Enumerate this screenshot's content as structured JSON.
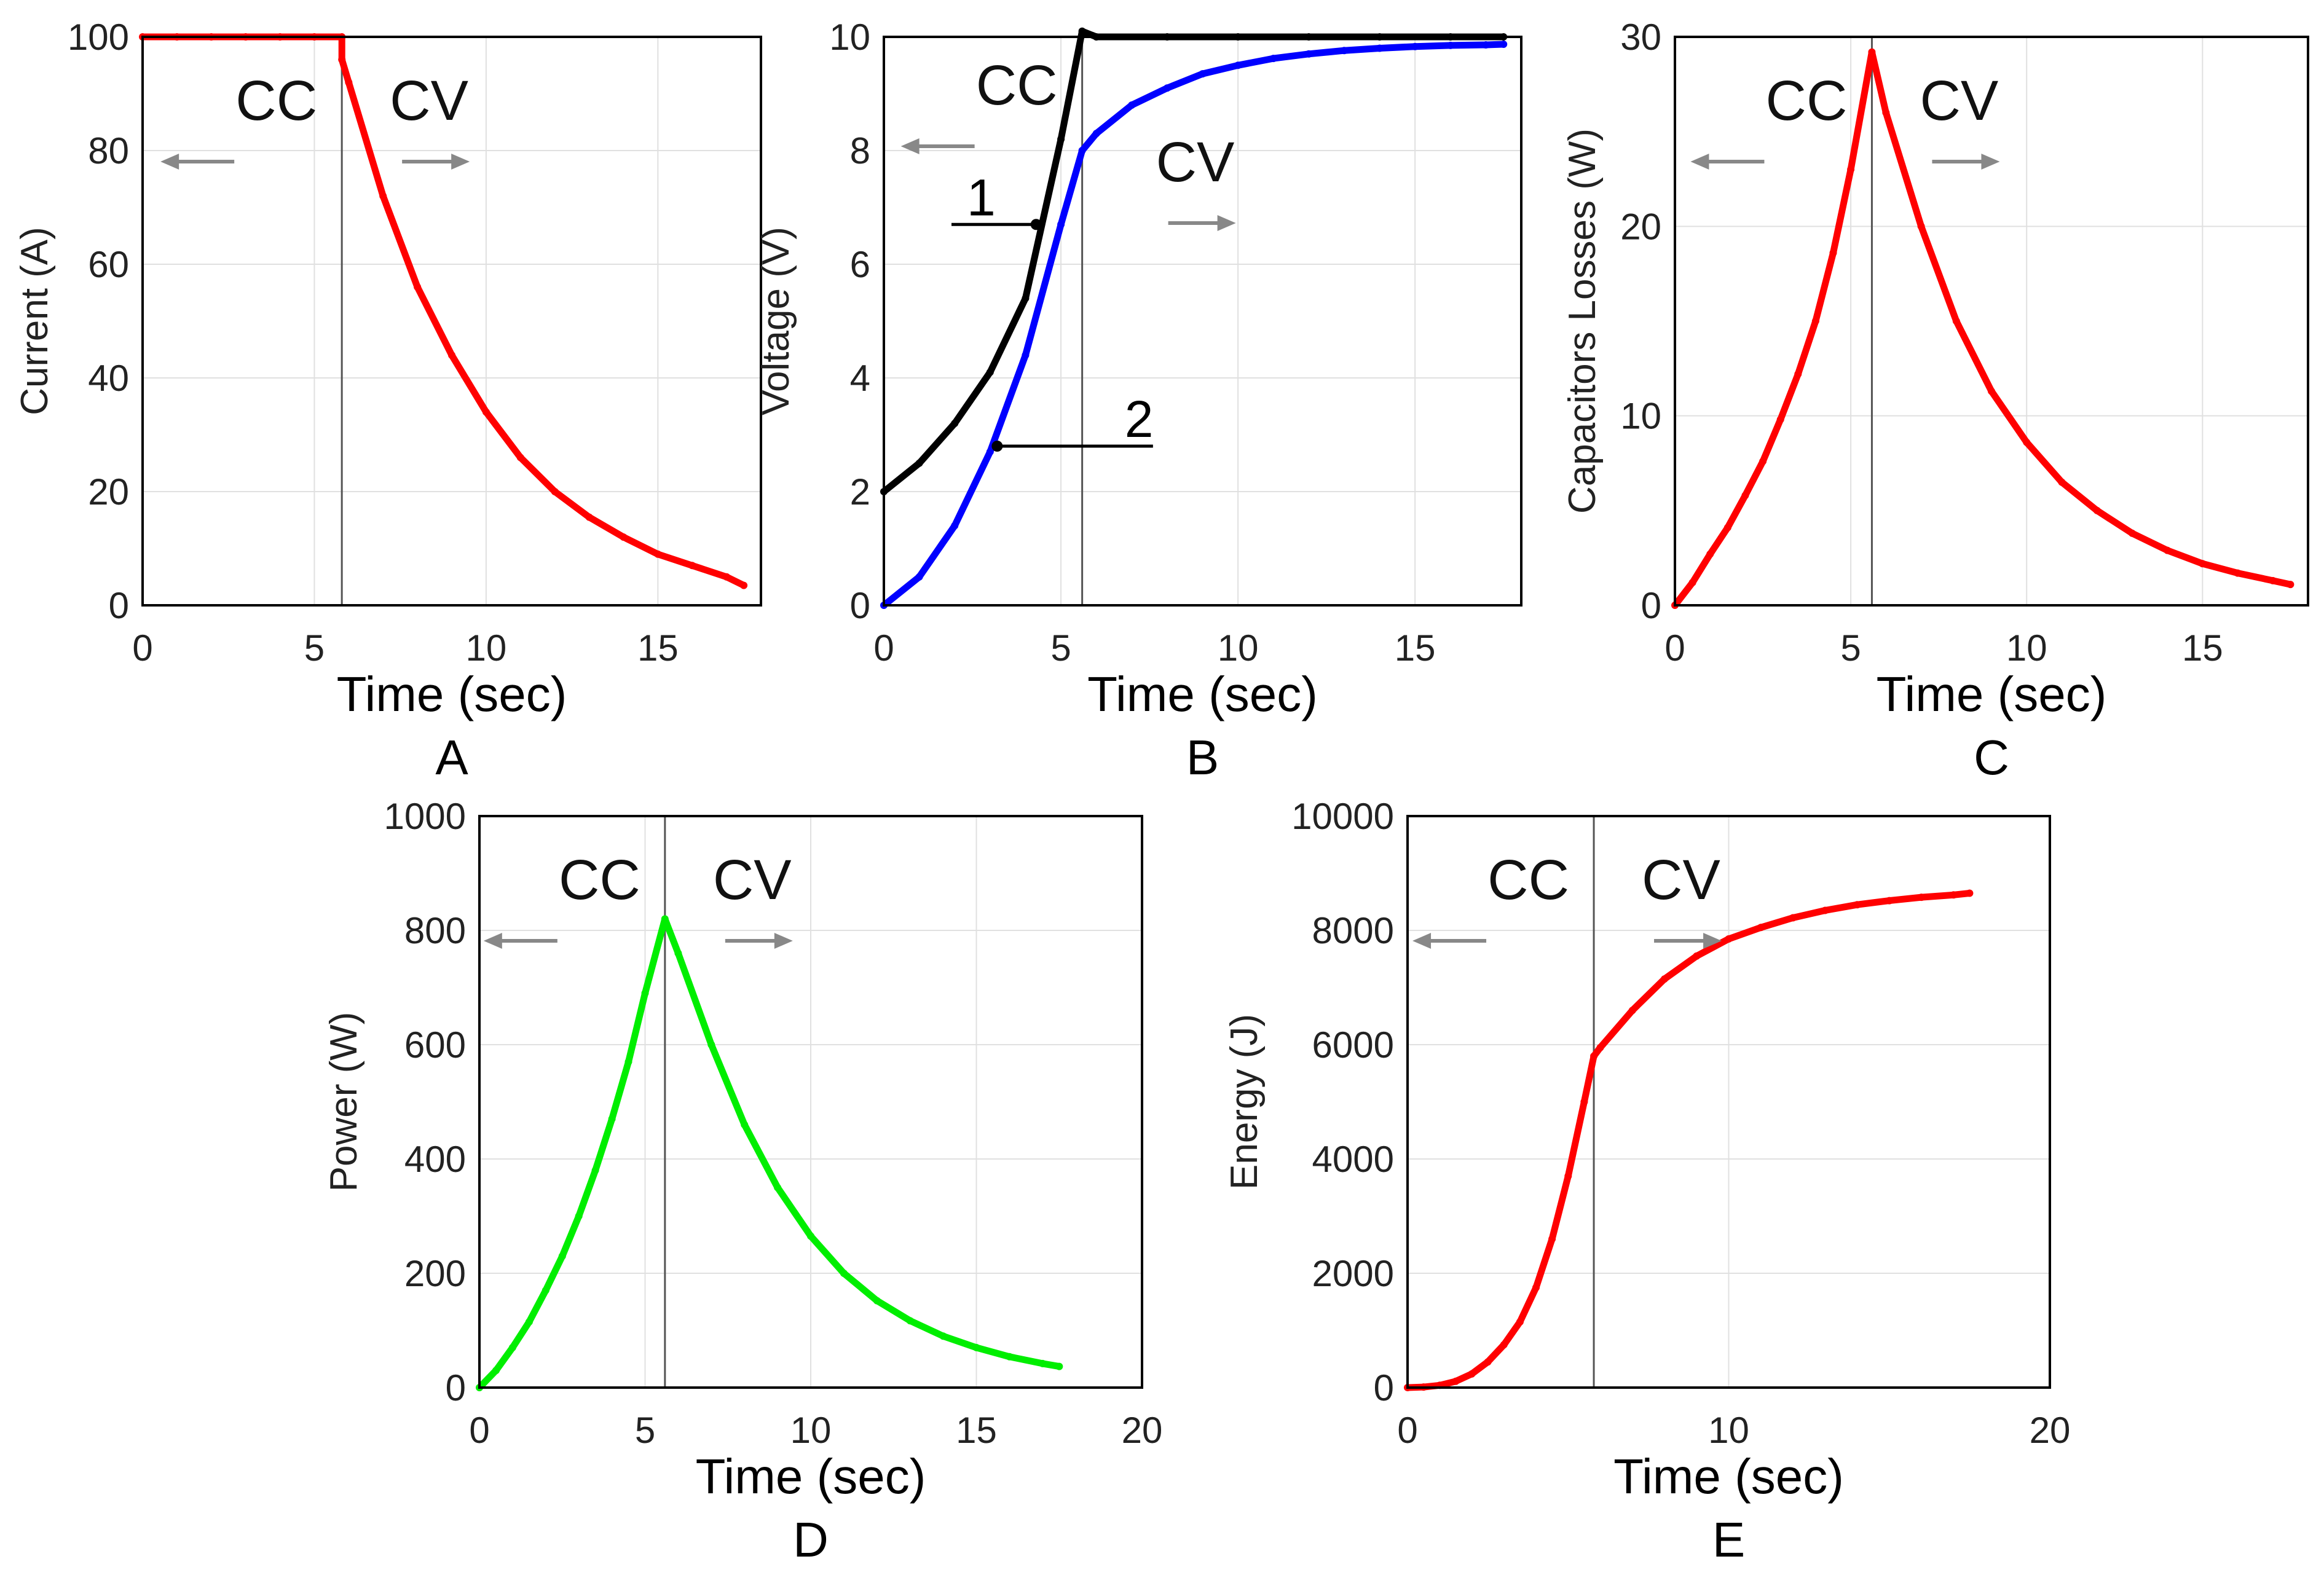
{
  "chart_data": [
    {
      "id": "A",
      "type": "line",
      "panel_label": "A",
      "xlabel": "Time (sec)",
      "ylabel": "Current (A)",
      "xlim": [
        0,
        18
      ],
      "ylim": [
        0,
        100
      ],
      "xticks": [
        0,
        5,
        10,
        15
      ],
      "yticks": [
        0,
        20,
        40,
        60,
        80,
        100
      ],
      "grid": true,
      "switch_time": 5.8,
      "cc_label": "CC",
      "cv_label": "CV",
      "series": [
        {
          "name": "Current",
          "color": "#ff0000",
          "x": [
            0,
            1,
            2,
            3,
            4,
            5,
            5.8,
            5.8,
            6,
            7,
            8,
            9,
            10,
            11,
            12,
            13,
            14,
            15,
            16,
            17,
            17.5
          ],
          "y": [
            100,
            100,
            100,
            100,
            100,
            100,
            100,
            96,
            92,
            72,
            56,
            44,
            34,
            26,
            20,
            15.5,
            12,
            9,
            7,
            5,
            3.5
          ]
        }
      ]
    },
    {
      "id": "B",
      "type": "line",
      "panel_label": "B",
      "xlabel": "Time (sec)",
      "ylabel": "Voltage (V)",
      "xlim": [
        0,
        18
      ],
      "ylim": [
        0,
        10
      ],
      "xticks": [
        0,
        5,
        10,
        15
      ],
      "yticks": [
        0,
        2,
        4,
        6,
        8,
        10
      ],
      "grid": true,
      "switch_time": 5.6,
      "cc_label": "CC",
      "cv_label": "CV",
      "callouts": [
        "1",
        "2"
      ],
      "series": [
        {
          "name": "1",
          "color": "#000000",
          "x": [
            0,
            1,
            2,
            3,
            4,
            5,
            5.6,
            6,
            8,
            10,
            12,
            14,
            16,
            17.5
          ],
          "y": [
            2,
            2.5,
            3.2,
            4.1,
            5.4,
            8.2,
            10.1,
            10,
            10,
            10,
            10,
            10,
            10,
            10
          ]
        },
        {
          "name": "2",
          "color": "#0000ff",
          "x": [
            0,
            1,
            2,
            3,
            4,
            5,
            5.6,
            6,
            7,
            8,
            9,
            10,
            11,
            12,
            13,
            14,
            15,
            16,
            17,
            17.5
          ],
          "y": [
            0,
            0.5,
            1.4,
            2.7,
            4.4,
            6.7,
            8.0,
            8.3,
            8.8,
            9.1,
            9.35,
            9.5,
            9.62,
            9.7,
            9.76,
            9.8,
            9.83,
            9.85,
            9.86,
            9.87
          ]
        }
      ]
    },
    {
      "id": "C",
      "type": "line",
      "panel_label": "C",
      "xlabel": "Time (sec)",
      "ylabel": "Capacitors Losses (W)",
      "xlim": [
        0,
        18
      ],
      "ylim": [
        0,
        30
      ],
      "xticks": [
        0,
        5,
        10,
        15
      ],
      "yticks": [
        0,
        10,
        20,
        30
      ],
      "grid": true,
      "switch_time": 5.6,
      "cc_label": "CC",
      "cv_label": "CV",
      "series": [
        {
          "name": "Capacitors Losses",
          "color": "#ff0000",
          "x": [
            0,
            0.5,
            1,
            1.5,
            2,
            2.5,
            3,
            3.5,
            4,
            4.5,
            5,
            5.6,
            6,
            7,
            8,
            9,
            10,
            11,
            12,
            13,
            14,
            15,
            16,
            17,
            17.5
          ],
          "y": [
            0,
            1.2,
            2.7,
            4.1,
            5.8,
            7.6,
            9.8,
            12.2,
            15.0,
            18.6,
            23.0,
            29.2,
            26.0,
            20.0,
            15.0,
            11.3,
            8.6,
            6.5,
            5.0,
            3.8,
            2.9,
            2.2,
            1.7,
            1.3,
            1.1
          ]
        }
      ]
    },
    {
      "id": "D",
      "type": "line",
      "panel_label": "D",
      "xlabel": "Time (sec)",
      "ylabel": "Power (W)",
      "xlim": [
        0,
        20
      ],
      "ylim": [
        0,
        1000
      ],
      "xticks": [
        0,
        5,
        10,
        15,
        20
      ],
      "yticks": [
        0,
        200,
        400,
        600,
        800,
        1000
      ],
      "grid": true,
      "switch_time": 5.6,
      "cc_label": "CC",
      "cv_label": "CV",
      "series": [
        {
          "name": "Power",
          "color": "#00ee00",
          "x": [
            0,
            0.5,
            1,
            1.5,
            2,
            2.5,
            3,
            3.5,
            4,
            4.5,
            5,
            5.6,
            6,
            7,
            8,
            9,
            10,
            11,
            12,
            13,
            14,
            15,
            16,
            17,
            17.5
          ],
          "y": [
            0,
            30,
            70,
            115,
            170,
            230,
            300,
            380,
            470,
            570,
            690,
            820,
            760,
            600,
            460,
            350,
            265,
            200,
            152,
            117,
            90,
            70,
            54,
            42,
            37
          ]
        }
      ]
    },
    {
      "id": "E",
      "type": "line",
      "panel_label": "E",
      "xlabel": "Time (sec)",
      "ylabel": "Energy (J)",
      "xlim": [
        0,
        20
      ],
      "ylim": [
        0,
        10000
      ],
      "xticks": [
        0,
        10,
        20
      ],
      "yticks": [
        0,
        2000,
        4000,
        6000,
        8000,
        10000
      ],
      "grid": true,
      "switch_time": 5.8,
      "cc_label": "CC",
      "cv_label": "CV",
      "series": [
        {
          "name": "Energy",
          "color": "#ff0000",
          "x": [
            0,
            0.5,
            1,
            1.5,
            2,
            2.5,
            3,
            3.5,
            4,
            4.5,
            5,
            5.5,
            5.8,
            6,
            7,
            8,
            9,
            10,
            11,
            12,
            13,
            14,
            15,
            16,
            17,
            17.5
          ],
          "y": [
            0,
            10,
            40,
            110,
            240,
            450,
            750,
            1150,
            1750,
            2600,
            3700,
            5000,
            5800,
            5950,
            6600,
            7150,
            7550,
            7850,
            8050,
            8220,
            8350,
            8450,
            8520,
            8580,
            8620,
            8650
          ]
        }
      ]
    }
  ]
}
